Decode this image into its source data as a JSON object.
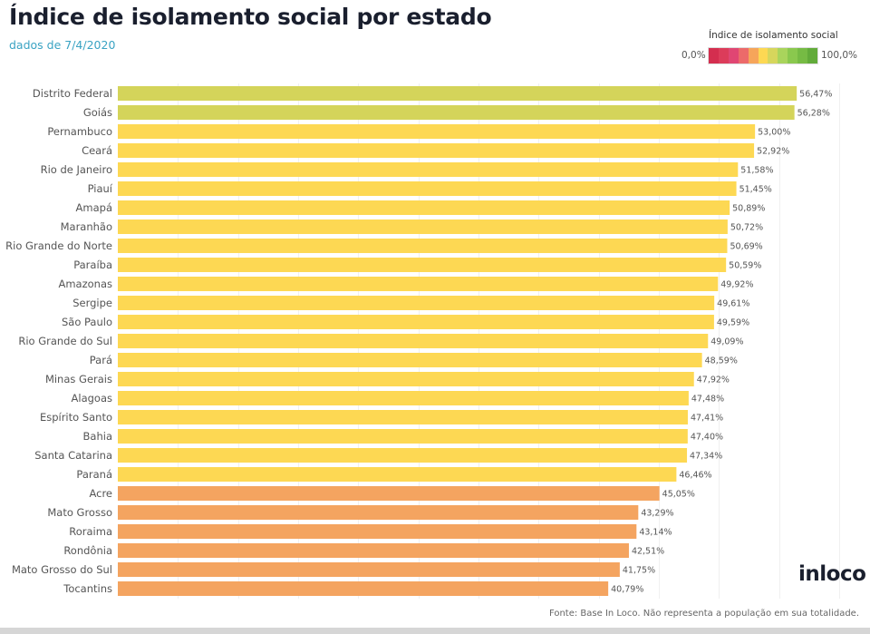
{
  "header": {
    "title": "Índice de isolamento social por estado",
    "subtitle": "dados de 7/4/2020"
  },
  "legend": {
    "title": "Índice de isolamento social",
    "min_label": "0,0%",
    "max_label": "100,0%",
    "colors": [
      "#d42e4f",
      "#dc3c5a",
      "#e04673",
      "#ec6a6a",
      "#f6a55a",
      "#fdd853",
      "#d6d65c",
      "#a9d45c",
      "#8ac84e",
      "#76bb44",
      "#62ab3a"
    ]
  },
  "colors": {
    "high": "#d4d45a",
    "mid": "#fdd853",
    "low": "#f4a460",
    "gridline": "#f0f0f0"
  },
  "chart_data": {
    "type": "bar",
    "orientation": "horizontal",
    "title": "Índice de isolamento social por estado",
    "subtitle": "dados de 7/4/2020",
    "xlabel": "",
    "ylabel": "",
    "xlim": [
      0,
      60
    ],
    "grid": true,
    "gridline_step": 5,
    "legend": "top-right",
    "categories": [
      "Distrito Federal",
      "Goiás",
      "Pernambuco",
      "Ceará",
      "Rio de Janeiro",
      "Piauí",
      "Amapá",
      "Maranhão",
      "Rio Grande do Norte",
      "Paraíba",
      "Amazonas",
      "Sergipe",
      "São Paulo",
      "Rio Grande do Sul",
      "Pará",
      "Minas Gerais",
      "Alagoas",
      "Espírito Santo",
      "Bahia",
      "Santa Catarina",
      "Paraná",
      "Acre",
      "Mato Grosso",
      "Roraima",
      "Rondônia",
      "Mato Grosso do Sul",
      "Tocantins"
    ],
    "values": [
      56.47,
      56.28,
      53.0,
      52.92,
      51.58,
      51.45,
      50.89,
      50.72,
      50.69,
      50.59,
      49.92,
      49.61,
      49.59,
      49.09,
      48.59,
      47.92,
      47.48,
      47.41,
      47.4,
      47.34,
      46.46,
      45.05,
      43.29,
      43.14,
      42.51,
      41.75,
      40.79
    ],
    "value_labels": [
      "56,47%",
      "56,28%",
      "53,00%",
      "52,92%",
      "51,58%",
      "51,45%",
      "50,89%",
      "50,72%",
      "50,69%",
      "50,59%",
      "49,92%",
      "49,61%",
      "49,59%",
      "49,09%",
      "48,59%",
      "47,92%",
      "47,48%",
      "47,41%",
      "47,40%",
      "47,34%",
      "46,46%",
      "45,05%",
      "43,29%",
      "43,14%",
      "42,51%",
      "41,75%",
      "40,79%"
    ],
    "color_bins": [
      "high",
      "high",
      "mid",
      "mid",
      "mid",
      "mid",
      "mid",
      "mid",
      "mid",
      "mid",
      "mid",
      "mid",
      "mid",
      "mid",
      "mid",
      "mid",
      "mid",
      "mid",
      "mid",
      "mid",
      "mid",
      "low",
      "low",
      "low",
      "low",
      "low",
      "low"
    ]
  },
  "logo": "inloco",
  "footer": "Fonte: Base In Loco. Não representa a população em sua totalidade."
}
